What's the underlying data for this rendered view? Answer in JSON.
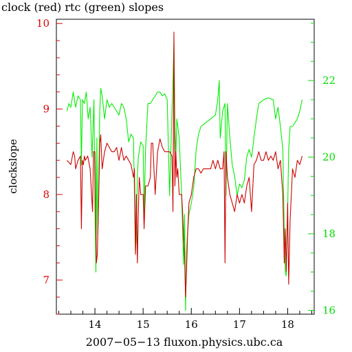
{
  "chart_data": {
    "type": "line",
    "title": "clock (red) rtc (green) slopes",
    "xlabel": "2007−05−13 fluxon.physics.ubc.ca",
    "ylabel": "clockslope",
    "xlim": [
      13.2,
      18.55
    ],
    "ylim_left": [
      6.6,
      10.05
    ],
    "ylim_right": [
      15.9,
      23.6
    ],
    "x_ticks": [
      14,
      15,
      16,
      17,
      18
    ],
    "left_ticks": [
      7,
      8,
      9,
      10
    ],
    "right_ticks": [
      16,
      18,
      20,
      22
    ],
    "left_axis_color": "#e00000",
    "right_axis_color": "#00dd00",
    "series": [
      {
        "name": "clock",
        "color": "#cc0000",
        "axis": "left",
        "x": [
          13.42,
          13.5,
          13.55,
          13.58,
          13.6,
          13.65,
          13.7,
          13.72,
          13.74,
          13.76,
          13.78,
          13.8,
          13.85,
          13.9,
          13.95,
          13.97,
          14.0,
          14.03,
          14.05,
          14.08,
          14.1,
          14.12,
          14.15,
          14.2,
          14.25,
          14.3,
          14.35,
          14.4,
          14.45,
          14.5,
          14.55,
          14.6,
          14.65,
          14.7,
          14.75,
          14.8,
          14.82,
          14.84,
          14.86,
          14.88,
          14.9,
          14.92,
          14.95,
          15.0,
          15.02,
          15.05,
          15.1,
          15.15,
          15.17,
          15.2,
          15.25,
          15.3,
          15.35,
          15.4,
          15.45,
          15.5,
          15.55,
          15.6,
          15.62,
          15.64,
          15.66,
          15.68,
          15.7,
          15.72,
          15.75,
          15.8,
          15.82,
          15.84,
          15.86,
          15.88,
          15.9,
          15.92,
          15.95,
          16.0,
          16.05,
          16.1,
          16.15,
          16.2,
          16.25,
          16.3,
          16.35,
          16.4,
          16.45,
          16.5,
          16.55,
          16.6,
          16.65,
          16.68,
          16.7,
          16.72,
          16.75,
          16.8,
          16.85,
          16.9,
          16.95,
          17.0,
          17.05,
          17.1,
          17.15,
          17.2,
          17.25,
          17.3,
          17.35,
          17.4,
          17.45,
          17.5,
          17.55,
          17.6,
          17.65,
          17.7,
          17.75,
          17.8,
          17.85,
          17.9,
          17.93,
          17.95,
          17.97,
          18.0,
          18.02,
          18.05,
          18.1,
          18.15,
          18.2,
          18.25,
          18.3
        ],
        "values": [
          8.4,
          8.35,
          8.5,
          8.45,
          8.3,
          8.4,
          8.45,
          7.6,
          8.4,
          8.35,
          8.45,
          8.4,
          8.45,
          8.3,
          7.8,
          8.5,
          8.5,
          7.2,
          7.3,
          8.0,
          8.6,
          8.7,
          8.3,
          8.5,
          8.6,
          8.55,
          8.5,
          8.5,
          8.55,
          8.4,
          8.55,
          8.4,
          8.45,
          8.4,
          8.35,
          8.2,
          8.3,
          7.3,
          8.0,
          7.2,
          7.8,
          8.2,
          8.0,
          8.0,
          7.6,
          8.1,
          8.1,
          8.2,
          8.6,
          8.6,
          8.0,
          8.5,
          8.65,
          8.55,
          8.5,
          8.5,
          8.5,
          8.45,
          7.8,
          9.9,
          8.1,
          8.5,
          8.2,
          8.3,
          8.0,
          8.0,
          7.8,
          7.5,
          7.3,
          6.8,
          7.1,
          7.5,
          7.9,
          8.0,
          8.2,
          8.3,
          8.3,
          8.25,
          8.3,
          8.3,
          8.3,
          8.3,
          8.4,
          8.3,
          8.4,
          8.3,
          8.3,
          8.5,
          7.2,
          8.5,
          8.2,
          8.0,
          7.9,
          7.8,
          8.0,
          7.9,
          8.0,
          7.9,
          8.1,
          8.2,
          7.8,
          8.35,
          8.4,
          8.5,
          8.4,
          8.4,
          8.5,
          8.4,
          8.45,
          8.4,
          8.5,
          8.3,
          8.4,
          8.0,
          7.2,
          7.6,
          7.1,
          7.9,
          6.95,
          7.7,
          8.3,
          8.2,
          8.4,
          8.35,
          8.45
        ],
        "thin": true
      },
      {
        "name": "rtc",
        "color": "#00ee00",
        "axis": "right",
        "x": [
          13.42,
          13.46,
          13.5,
          13.55,
          13.6,
          13.65,
          13.7,
          13.72,
          13.74,
          13.78,
          13.82,
          13.86,
          13.9,
          13.94,
          13.98,
          14.0,
          14.02,
          14.04,
          14.06,
          14.1,
          14.12,
          14.15,
          14.2,
          14.25,
          14.3,
          14.35,
          14.4,
          14.45,
          14.5,
          14.55,
          14.6,
          14.65,
          14.7,
          14.75,
          14.8,
          14.82,
          14.84,
          14.86,
          14.88,
          14.9,
          14.95,
          15.0,
          15.02,
          15.05,
          15.1,
          15.15,
          15.2,
          15.25,
          15.3,
          15.35,
          15.4,
          15.45,
          15.5,
          15.55,
          15.6,
          15.62,
          15.64,
          15.66,
          15.68,
          15.7,
          15.72,
          15.75,
          15.8,
          15.84,
          15.86,
          15.88,
          15.9,
          15.92,
          15.95,
          16.0,
          16.05,
          16.1,
          16.15,
          16.2,
          16.3,
          16.4,
          16.5,
          16.55,
          16.58,
          16.6,
          16.65,
          16.7,
          16.72,
          16.75,
          16.8,
          16.85,
          16.9,
          16.95,
          17.0,
          17.05,
          17.1,
          17.15,
          17.2,
          17.25,
          17.3,
          17.35,
          17.4,
          17.5,
          17.6,
          17.7,
          17.75,
          17.8,
          17.85,
          17.9,
          17.93,
          17.95,
          17.97,
          18.0,
          18.02,
          18.05,
          18.1,
          18.15,
          18.2,
          18.25,
          18.3
        ],
        "values": [
          21.2,
          21.4,
          21.3,
          21.7,
          21.3,
          21.6,
          21.5,
          19.8,
          21.5,
          21.4,
          21.7,
          21.0,
          21.3,
          20.0,
          21.5,
          18.6,
          17.0,
          20.5,
          18.0,
          21.2,
          21.8,
          21.6,
          21.0,
          21.5,
          21.3,
          21.4,
          21.3,
          21.2,
          21.1,
          21.4,
          21.3,
          21.0,
          20.4,
          20.6,
          20.5,
          19.0,
          17.5,
          18.0,
          19.5,
          20.0,
          20.4,
          20.3,
          18.5,
          20.2,
          21.4,
          21.4,
          21.5,
          21.6,
          21.7,
          21.7,
          21.6,
          21.65,
          21.5,
          19.0,
          21.2,
          22.0,
          23.0,
          20.8,
          20.0,
          21.0,
          20.8,
          20.5,
          19.0,
          17.2,
          18.5,
          16.0,
          17.5,
          18.0,
          18.5,
          18.8,
          19.2,
          20.2,
          20.6,
          20.8,
          20.9,
          21.0,
          21.1,
          21.5,
          22.0,
          20.5,
          21.2,
          21.4,
          19.0,
          21.4,
          20.5,
          19.8,
          19.5,
          19.0,
          19.3,
          19.2,
          19.4,
          20.0,
          20.2,
          20.0,
          20.5,
          21.0,
          21.4,
          21.5,
          21.55,
          21.5,
          21.0,
          21.3,
          20.8,
          20.2,
          18.0,
          17.0,
          16.9,
          18.6,
          20.2,
          20.8,
          20.8,
          20.9,
          21.0,
          21.2,
          21.5
        ]
      }
    ]
  }
}
